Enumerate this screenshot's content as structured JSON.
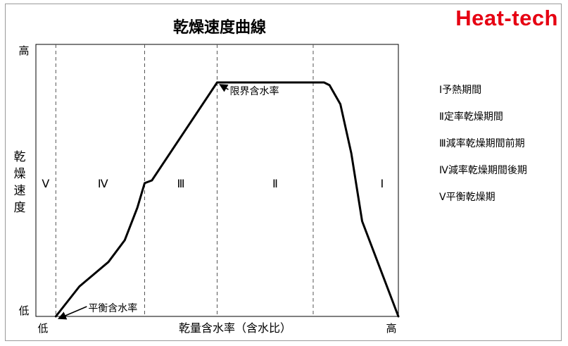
{
  "brand": "Heat-tech",
  "chart_data": {
    "type": "line",
    "title": "乾燥速度曲線",
    "xlabel": "乾量含水率（含水比）",
    "ylabel": "乾燥速度",
    "x_tick_low": "低",
    "x_tick_high": "高",
    "y_tick_low": "低",
    "y_tick_high": "高",
    "xlim": [
      0,
      1
    ],
    "ylim": [
      0,
      1
    ],
    "grid": false,
    "series": [
      {
        "x": [
          0.055,
          0.12,
          0.2,
          0.245,
          0.28,
          0.3,
          0.32,
          0.5,
          0.765,
          0.795,
          0.81,
          0.84,
          0.87,
          0.9,
          1.0
        ],
        "y": [
          0.0,
          0.11,
          0.2,
          0.28,
          0.4,
          0.49,
          0.5,
          0.86,
          0.86,
          0.86,
          0.85,
          0.78,
          0.6,
          0.35,
          0.0
        ]
      }
    ],
    "boundaries": [
      0.055,
      0.3,
      0.5,
      0.765,
      1.0
    ],
    "zones": [
      {
        "label": "Ⅴ",
        "center": 0.027
      },
      {
        "label": "Ⅳ",
        "center": 0.185
      },
      {
        "label": "Ⅲ",
        "center": 0.4
      },
      {
        "label": "Ⅱ",
        "center": 0.66
      },
      {
        "label": "Ⅰ",
        "center": 0.955
      }
    ],
    "annotations": [
      {
        "text": "限界含水率",
        "x": 0.5,
        "y": 0.86
      },
      {
        "text": "平衡含水率",
        "x": 0.055,
        "y": 0.0
      }
    ],
    "legend": [
      "Ⅰ予熱期間",
      "Ⅱ定率乾燥期間",
      "Ⅲ減率乾燥期間前期",
      "Ⅳ減率乾燥期間後期",
      "Ⅴ平衡乾燥期"
    ]
  }
}
